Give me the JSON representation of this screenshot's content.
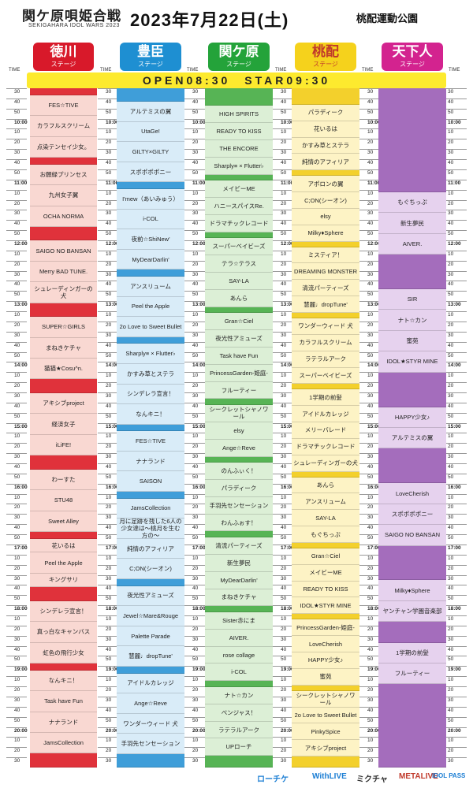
{
  "header": {
    "logo": "関ケ原唄姫合戦",
    "logo_sub": "SEKIGAHARA IDOL WARS 2023",
    "date": "2023年7月22日(土)",
    "venue": "桃配運動公園"
  },
  "time_label": "TIME",
  "open_start": "OPEN08:30　STAR09:30",
  "stages": [
    {
      "key": "tokugawa",
      "name": "徳川",
      "sub": "ステージ",
      "color": "#d8192a",
      "bg": "#f9d8d2",
      "rule": "#e0323b"
    },
    {
      "key": "toyotomi",
      "name": "豊臣",
      "sub": "ステージ",
      "color": "#1e8fd2",
      "bg": "#d9ecf8",
      "rule": "#3f9ed9"
    },
    {
      "key": "sekigahara",
      "name": "関ケ原",
      "sub": "ステージ",
      "color": "#24a33a",
      "bg": "#dcefd6",
      "rule": "#57b455"
    },
    {
      "key": "momokubari",
      "name": "桃配",
      "sub": "ステージ",
      "color": "#f5d21c",
      "bg": "#fdf3c5",
      "rule": "#f3d02c"
    },
    {
      "key": "tenka",
      "name": "天下人",
      "sub": "ステージ",
      "color": "#d3238f",
      "bg": "#e6d2ee",
      "rule": "#9b67b4"
    }
  ],
  "times": [
    "30",
    "40",
    "50",
    "10:00",
    "10",
    "20",
    "30",
    "40",
    "50",
    "11:00",
    "10",
    "20",
    "30",
    "40",
    "50",
    "12:00",
    "10",
    "20",
    "30",
    "40",
    "50",
    "13:00",
    "10",
    "20",
    "30",
    "40",
    "50",
    "14:00",
    "10",
    "20",
    "30",
    "40",
    "50",
    "15:00",
    "10",
    "20",
    "30",
    "40",
    "50",
    "16:00",
    "10",
    "20",
    "30",
    "40",
    "50",
    "17:00",
    "10",
    "20",
    "30",
    "40",
    "50",
    "18:00",
    "10",
    "20",
    "30",
    "40",
    "50",
    "19:00",
    "10",
    "20",
    "30",
    "40",
    "50",
    "20:00",
    "10",
    "20",
    "30"
  ],
  "timetable": {
    "tokugawa": [
      {
        "s": 0,
        "e": 1,
        "t": ""
      },
      {
        "s": 1,
        "e": 4,
        "t": "FES☆TIVE"
      },
      {
        "s": 4,
        "e": 7,
        "t": "カラフルスクリーム"
      },
      {
        "s": 7,
        "e": 10,
        "t": "点染テンセイ少女。"
      },
      {
        "s": 10,
        "e": 11,
        "t": ""
      },
      {
        "s": 11,
        "e": 14,
        "t": "お願緑プリンセス"
      },
      {
        "s": 14,
        "e": 17,
        "t": "九州女子翼"
      },
      {
        "s": 17,
        "e": 20,
        "t": "OCHA NORMA"
      },
      {
        "s": 20,
        "e": 22,
        "t": ""
      },
      {
        "s": 22,
        "e": 25,
        "t": "SAIGO NO BANSAN"
      },
      {
        "s": 25,
        "e": 28,
        "t": "Merry BAD TUNE."
      },
      {
        "s": 28,
        "e": 31,
        "t": "シュレーディンガーの犬"
      },
      {
        "s": 31,
        "e": 33,
        "t": ""
      },
      {
        "s": 33,
        "e": 36,
        "t": "SUPER☆GIRLS"
      },
      {
        "s": 36,
        "e": 39,
        "t": "まねきケチャ"
      },
      {
        "s": 39,
        "e": 42,
        "t": "猫猫★Cosu^n."
      },
      {
        "s": 42,
        "e": 44,
        "t": ""
      },
      {
        "s": 44,
        "e": 47,
        "t": "アキシブproject"
      },
      {
        "s": 47,
        "e": 50,
        "t": "経済女子"
      },
      {
        "s": 50,
        "e": 53,
        "t": "iLiFE!"
      },
      {
        "s": 53,
        "e": 55,
        "t": ""
      },
      {
        "s": 55,
        "e": 58,
        "t": "わーすた"
      },
      {
        "s": 58,
        "e": 61,
        "t": "STU48"
      },
      {
        "s": 61,
        "e": 64,
        "t": "Sweet Alley"
      },
      {
        "s": 64,
        "e": 65,
        "t": ""
      },
      {
        "s": 65,
        "e": 67,
        "t": "花いるは"
      },
      {
        "s": 67,
        "e": 70,
        "t": "Peel the Apple"
      },
      {
        "s": 70,
        "e": 72,
        "t": "キングサリ"
      },
      {
        "s": 72,
        "e": 74,
        "t": ""
      },
      {
        "s": 74,
        "e": 77,
        "t": "シンデレラ宣言！"
      },
      {
        "s": 77,
        "e": 80,
        "t": "真っ白なキャンバス"
      },
      {
        "s": 80,
        "e": 83,
        "t": "虹色の飛行少女"
      },
      {
        "s": 83,
        "e": 84,
        "t": ""
      },
      {
        "s": 84,
        "e": 87,
        "t": "なんキニ！"
      },
      {
        "s": 87,
        "e": 90,
        "t": "Task have Fun"
      },
      {
        "s": 90,
        "e": 93,
        "t": "ナナランド"
      },
      {
        "s": 93,
        "e": 96,
        "t": "JamsCollection"
      },
      {
        "s": 96,
        "e": 98,
        "t": ""
      }
    ],
    "toyotomi": [
      {
        "s": 0,
        "e": 2,
        "t": ""
      },
      {
        "s": 2,
        "e": 5,
        "t": "アルテミスの翼"
      },
      {
        "s": 5,
        "e": 8,
        "t": "UtaGe!"
      },
      {
        "s": 8,
        "e": 11,
        "t": "GILTY×GILTY"
      },
      {
        "s": 11,
        "e": 14,
        "t": "スポポポポニー"
      },
      {
        "s": 14,
        "e": 15,
        "t": ""
      },
      {
        "s": 15,
        "e": 18,
        "t": "I'mew（あいみゅう）"
      },
      {
        "s": 18,
        "e": 21,
        "t": "i-COL"
      },
      {
        "s": 21,
        "e": 24,
        "t": "夜前☆ShiNew'"
      },
      {
        "s": 24,
        "e": 27,
        "t": "MyDearDarlin'"
      },
      {
        "s": 27,
        "e": 28,
        "t": ""
      },
      {
        "s": 28,
        "e": 31,
        "t": "アンスリューム"
      },
      {
        "s": 31,
        "e": 34,
        "t": "Peel the Apple"
      },
      {
        "s": 34,
        "e": 37,
        "t": "2o Love to Sweet Bullet"
      },
      {
        "s": 37,
        "e": 38,
        "t": ""
      },
      {
        "s": 38,
        "e": 41,
        "t": "Sharply≡ × Flutter♭"
      },
      {
        "s": 41,
        "e": 44,
        "t": "かすみ草とステラ"
      },
      {
        "s": 44,
        "e": 47,
        "t": "シンデレラ宣言！"
      },
      {
        "s": 47,
        "e": 50,
        "t": "なんキニ！"
      },
      {
        "s": 50,
        "e": 51,
        "t": ""
      },
      {
        "s": 51,
        "e": 54,
        "t": "FES☆TIVE"
      },
      {
        "s": 54,
        "e": 57,
        "t": "ナナランド"
      },
      {
        "s": 57,
        "e": 60,
        "t": "SAISON"
      },
      {
        "s": 60,
        "e": 61,
        "t": ""
      },
      {
        "s": 61,
        "e": 64,
        "t": "JamsCollection"
      },
      {
        "s": 64,
        "e": 67,
        "t": "月に足跡を残した6人の少女達は～桃月を生む方の～"
      },
      {
        "s": 67,
        "e": 70,
        "t": "純情のアフィリア"
      },
      {
        "s": 70,
        "e": 73,
        "t": "C;ON(シーオン)"
      },
      {
        "s": 73,
        "e": 74,
        "t": ""
      },
      {
        "s": 74,
        "e": 77,
        "t": "夜光性アミューズ"
      },
      {
        "s": 77,
        "e": 80,
        "t": "Jewel☆Mare&Rouge"
      },
      {
        "s": 80,
        "e": 83,
        "t": "Palette Parade"
      },
      {
        "s": 83,
        "e": 86,
        "t": "慧麗♩dropTune'"
      },
      {
        "s": 86,
        "e": 87,
        "t": ""
      },
      {
        "s": 87,
        "e": 90,
        "t": "アイドルカレッジ"
      },
      {
        "s": 90,
        "e": 93,
        "t": "Ange☆Reve"
      },
      {
        "s": 93,
        "e": 96,
        "t": "ワンダーウィード 犬"
      },
      {
        "s": 96,
        "e": 99,
        "t": "手羽先センセーション"
      },
      {
        "s": 99,
        "e": 101,
        "t": ""
      }
    ],
    "sekigahara": [
      {
        "s": 0,
        "e": 3,
        "t": ""
      },
      {
        "s": 3,
        "e": 6,
        "t": "HIGH SPIRITS"
      },
      {
        "s": 6,
        "e": 9,
        "t": "READY TO KISS"
      },
      {
        "s": 9,
        "e": 12,
        "t": "THE ENCORE"
      },
      {
        "s": 12,
        "e": 15,
        "t": "Sharply≡ × Flutter♭"
      },
      {
        "s": 15,
        "e": 16,
        "t": ""
      },
      {
        "s": 16,
        "e": 19,
        "t": "メイビーME"
      },
      {
        "s": 19,
        "e": 22,
        "t": "ハニースパイスRe."
      },
      {
        "s": 22,
        "e": 25,
        "t": "ドラマチックレコード"
      },
      {
        "s": 25,
        "e": 26,
        "t": ""
      },
      {
        "s": 26,
        "e": 29,
        "t": "スーパーベイビーズ"
      },
      {
        "s": 29,
        "e": 32,
        "t": "テラ☆テラス"
      },
      {
        "s": 32,
        "e": 35,
        "t": "SAY-LA"
      },
      {
        "s": 35,
        "e": 38,
        "t": "あんら"
      },
      {
        "s": 38,
        "e": 39,
        "t": ""
      },
      {
        "s": 39,
        "e": 42,
        "t": "Gran☆Ciel"
      },
      {
        "s": 42,
        "e": 45,
        "t": "夜光性アミューズ"
      },
      {
        "s": 45,
        "e": 48,
        "t": "Task have Fun"
      },
      {
        "s": 48,
        "e": 51,
        "t": "PrincessGarden-姫庭-"
      },
      {
        "s": 51,
        "e": 54,
        "t": "フルーティー"
      },
      {
        "s": 54,
        "e": 55,
        "t": ""
      },
      {
        "s": 55,
        "e": 58,
        "t": "シークレットシャノワール"
      },
      {
        "s": 58,
        "e": 61,
        "t": "elsy"
      },
      {
        "s": 61,
        "e": 64,
        "t": "Ange☆Reve"
      },
      {
        "s": 64,
        "e": 65,
        "t": ""
      },
      {
        "s": 65,
        "e": 68,
        "t": "のんふぃく！"
      },
      {
        "s": 68,
        "e": 71,
        "t": "パラディーク"
      },
      {
        "s": 71,
        "e": 74,
        "t": "手羽先センセーション"
      },
      {
        "s": 74,
        "e": 77,
        "t": "わんふぉす！"
      },
      {
        "s": 77,
        "e": 78,
        "t": ""
      },
      {
        "s": 78,
        "e": 81,
        "t": "清流パーティーズ"
      },
      {
        "s": 81,
        "e": 84,
        "t": "新生夢民"
      },
      {
        "s": 84,
        "e": 87,
        "t": "MyDearDarlin'"
      },
      {
        "s": 87,
        "e": 90,
        "t": "まねきケチャ"
      },
      {
        "s": 90,
        "e": 91,
        "t": ""
      },
      {
        "s": 91,
        "e": 94,
        "t": "Sister赤にま"
      },
      {
        "s": 94,
        "e": 97,
        "t": "AIVER."
      },
      {
        "s": 97,
        "e": 100,
        "t": "rose collage"
      },
      {
        "s": 100,
        "e": 103,
        "t": "i-COL"
      },
      {
        "s": 103,
        "e": 104,
        "t": ""
      },
      {
        "s": 104,
        "e": 107,
        "t": "ナト☆カン"
      },
      {
        "s": 107,
        "e": 110,
        "t": "ベンジャス！"
      },
      {
        "s": 110,
        "e": 113,
        "t": "ラテラルアーク"
      },
      {
        "s": 113,
        "e": 116,
        "t": "UPローチ"
      },
      {
        "s": 116,
        "e": 118,
        "t": ""
      }
    ],
    "momokubari": [
      {
        "s": 0,
        "e": 3,
        "t": ""
      },
      {
        "s": 3,
        "e": 6,
        "t": "パラディーク"
      },
      {
        "s": 6,
        "e": 9,
        "t": "花いるは"
      },
      {
        "s": 9,
        "e": 12,
        "t": "かすみ草とステラ"
      },
      {
        "s": 12,
        "e": 15,
        "t": "純情のアフィリア"
      },
      {
        "s": 15,
        "e": 16,
        "t": ""
      },
      {
        "s": 16,
        "e": 19,
        "t": "アポロンの翼"
      },
      {
        "s": 19,
        "e": 22,
        "t": "C;ON(シーオン)"
      },
      {
        "s": 22,
        "e": 25,
        "t": "elsy"
      },
      {
        "s": 25,
        "e": 28,
        "t": "Milky♦Sphere"
      },
      {
        "s": 28,
        "e": 29,
        "t": ""
      },
      {
        "s": 29,
        "e": 32,
        "t": "ミスティア！"
      },
      {
        "s": 32,
        "e": 35,
        "t": "DREAMING MONSTER"
      },
      {
        "s": 35,
        "e": 38,
        "t": "清流パーティーズ"
      },
      {
        "s": 38,
        "e": 41,
        "t": "慧麗♩dropTune'"
      },
      {
        "s": 41,
        "e": 42,
        "t": ""
      },
      {
        "s": 42,
        "e": 45,
        "t": "ワンダーウィード 犬"
      },
      {
        "s": 45,
        "e": 48,
        "t": "カラフルスクリーム"
      },
      {
        "s": 48,
        "e": 51,
        "t": "ラテラルアーク"
      },
      {
        "s": 51,
        "e": 54,
        "t": "スーパーベイビーズ"
      },
      {
        "s": 54,
        "e": 55,
        "t": ""
      },
      {
        "s": 55,
        "e": 58,
        "t": "1学期の前髪"
      },
      {
        "s": 58,
        "e": 61,
        "t": "アイドルカレッジ"
      },
      {
        "s": 61,
        "e": 64,
        "t": "メリーバレード"
      },
      {
        "s": 64,
        "e": 67,
        "t": "ドラマチックレコード"
      },
      {
        "s": 67,
        "e": 70,
        "t": "シュレーディンガーの犬"
      },
      {
        "s": 70,
        "e": 71,
        "t": ""
      },
      {
        "s": 71,
        "e": 74,
        "t": "あんら"
      },
      {
        "s": 74,
        "e": 77,
        "t": "アンスリューム"
      },
      {
        "s": 77,
        "e": 80,
        "t": "SAY-LA"
      },
      {
        "s": 80,
        "e": 83,
        "t": "もぐちっぷ"
      },
      {
        "s": 83,
        "e": 84,
        "t": ""
      },
      {
        "s": 84,
        "e": 87,
        "t": "Gran☆Ciel"
      },
      {
        "s": 87,
        "e": 90,
        "t": "メイビーME"
      },
      {
        "s": 90,
        "e": 93,
        "t": "READY TO KISS"
      },
      {
        "s": 93,
        "e": 96,
        "t": "IDOL★STYR MINE"
      },
      {
        "s": 96,
        "e": 97,
        "t": ""
      },
      {
        "s": 97,
        "e": 100,
        "t": "PrincessGarden-姫庭-"
      },
      {
        "s": 100,
        "e": 103,
        "t": "LoveCherish"
      },
      {
        "s": 103,
        "e": 106,
        "t": "HAPPY少女♪"
      },
      {
        "s": 106,
        "e": 109,
        "t": "蜜苑"
      },
      {
        "s": 109,
        "e": 110,
        "t": ""
      },
      {
        "s": 110,
        "e": 113,
        "t": "シークレットシャノワール"
      },
      {
        "s": 113,
        "e": 116,
        "t": "2o Love to Sweet Bullet"
      },
      {
        "s": 116,
        "e": 119,
        "t": "PinkySpice"
      },
      {
        "s": 119,
        "e": 122,
        "t": "アキシブproject"
      },
      {
        "s": 122,
        "e": 124,
        "t": ""
      }
    ],
    "tenka": [
      {
        "s": 0,
        "e": 15,
        "t": ""
      },
      {
        "s": 15,
        "e": 18,
        "t": "もぐちっぷ"
      },
      {
        "s": 18,
        "e": 21,
        "t": "新生夢民"
      },
      {
        "s": 21,
        "e": 24,
        "t": "AIVER."
      },
      {
        "s": 24,
        "e": 29,
        "t": ""
      },
      {
        "s": 29,
        "e": 32,
        "t": "SIR"
      },
      {
        "s": 32,
        "e": 35,
        "t": "ナト☆カン"
      },
      {
        "s": 35,
        "e": 38,
        "t": "蜜苑"
      },
      {
        "s": 38,
        "e": 41,
        "t": "IDOL★STYR MINE"
      },
      {
        "s": 41,
        "e": 46,
        "t": ""
      },
      {
        "s": 46,
        "e": 49,
        "t": "HAPPY少女♪"
      },
      {
        "s": 49,
        "e": 52,
        "t": "アルテミスの翼"
      },
      {
        "s": 52,
        "e": 57,
        "t": ""
      },
      {
        "s": 57,
        "e": 60,
        "t": "LoveCherish"
      },
      {
        "s": 60,
        "e": 63,
        "t": "スポポポポニー"
      },
      {
        "s": 63,
        "e": 66,
        "t": "SAIGO NO BANSAN"
      },
      {
        "s": 66,
        "e": 71,
        "t": ""
      },
      {
        "s": 71,
        "e": 74,
        "t": "Milky♦Sphere"
      },
      {
        "s": 74,
        "e": 77,
        "t": "ヤンチャン学園音楽部"
      },
      {
        "s": 77,
        "e": 80,
        "t": ""
      },
      {
        "s": 80,
        "e": 83,
        "t": "1学期の前髪"
      },
      {
        "s": 83,
        "e": 86,
        "t": "フルーティー"
      },
      {
        "s": 86,
        "e": 98,
        "t": ""
      }
    ]
  },
  "sponsors": [
    "ローチケ",
    "WithLIVE",
    "ミクチャ",
    "METALIVE",
    "IDOL PASS"
  ]
}
